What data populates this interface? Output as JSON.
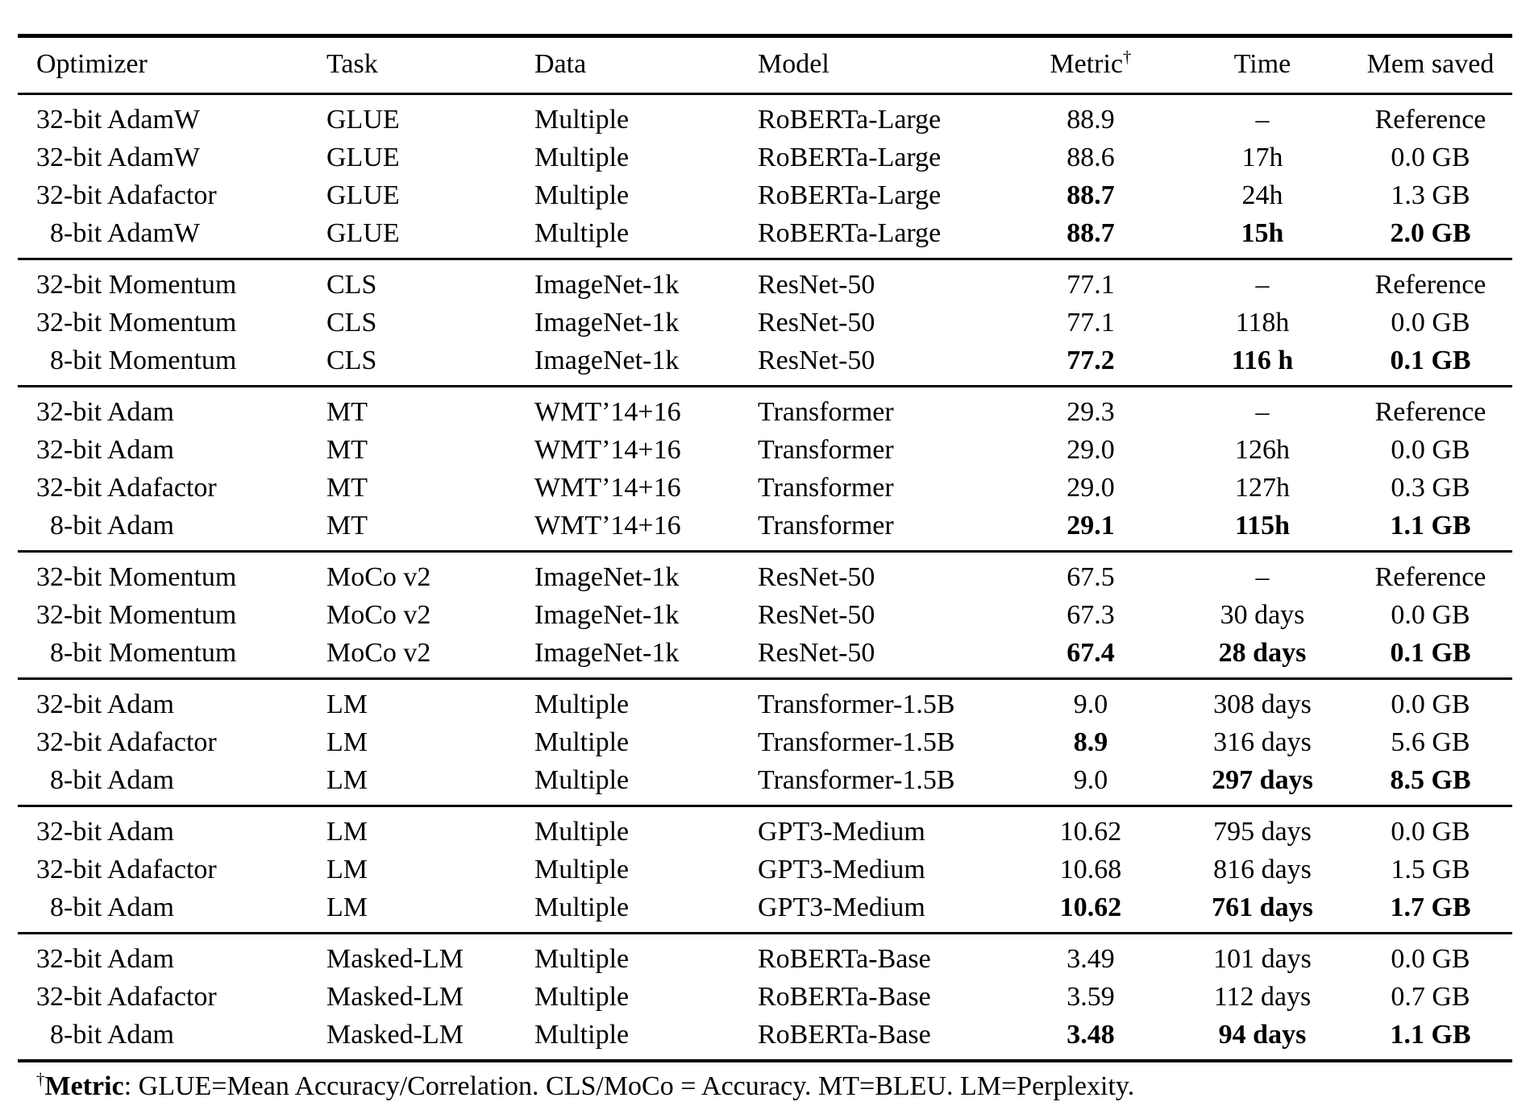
{
  "page": {
    "background_color": "#ffffff",
    "text_color": "#000000"
  },
  "table": {
    "columns": [
      {
        "label": "Optimizer"
      },
      {
        "label": "Task"
      },
      {
        "label": "Data"
      },
      {
        "label": "Model"
      },
      {
        "label": "Metric",
        "sup": "†"
      },
      {
        "label": "Time"
      },
      {
        "label": "Mem saved"
      }
    ],
    "sections": [
      {
        "rows": [
          {
            "cells": [
              "32-bit AdamW",
              "GLUE",
              "Multiple",
              "RoBERTa-Large",
              "88.9",
              "–",
              "Reference"
            ],
            "bold": []
          },
          {
            "cells": [
              "32-bit AdamW",
              "GLUE",
              "Multiple",
              "RoBERTa-Large",
              "88.6",
              "17h",
              "0.0 GB"
            ],
            "bold": []
          },
          {
            "cells": [
              "32-bit Adafactor",
              "GLUE",
              "Multiple",
              "RoBERTa-Large",
              "88.7",
              "24h",
              "1.3 GB"
            ],
            "bold": [
              4
            ]
          },
          {
            "cells": [
              "8-bit AdamW",
              "GLUE",
              "Multiple",
              "RoBERTa-Large",
              "88.7",
              "15h",
              "2.0 GB"
            ],
            "bold": [
              4,
              5,
              6
            ],
            "indent": true
          }
        ]
      },
      {
        "rows": [
          {
            "cells": [
              "32-bit Momentum",
              "CLS",
              "ImageNet-1k",
              "ResNet-50",
              "77.1",
              "–",
              "Reference"
            ],
            "bold": []
          },
          {
            "cells": [
              "32-bit Momentum",
              "CLS",
              "ImageNet-1k",
              "ResNet-50",
              "77.1",
              "118h",
              "0.0 GB"
            ],
            "bold": []
          },
          {
            "cells": [
              "8-bit Momentum",
              "CLS",
              "ImageNet-1k",
              "ResNet-50",
              "77.2",
              "116 h",
              "0.1 GB"
            ],
            "bold": [
              4,
              5,
              6
            ],
            "indent": true
          }
        ]
      },
      {
        "rows": [
          {
            "cells": [
              "32-bit Adam",
              "MT",
              "WMT’14+16",
              "Transformer",
              "29.3",
              "–",
              "Reference"
            ],
            "bold": []
          },
          {
            "cells": [
              "32-bit Adam",
              "MT",
              "WMT’14+16",
              "Transformer",
              "29.0",
              "126h",
              "0.0 GB"
            ],
            "bold": []
          },
          {
            "cells": [
              "32-bit Adafactor",
              "MT",
              "WMT’14+16",
              "Transformer",
              "29.0",
              "127h",
              "0.3 GB"
            ],
            "bold": []
          },
          {
            "cells": [
              "8-bit Adam",
              "MT",
              "WMT’14+16",
              "Transformer",
              "29.1",
              "115h",
              "1.1 GB"
            ],
            "bold": [
              4,
              5,
              6
            ],
            "indent": true
          }
        ]
      },
      {
        "rows": [
          {
            "cells": [
              "32-bit Momentum",
              "MoCo v2",
              "ImageNet-1k",
              "ResNet-50",
              "67.5",
              "–",
              "Reference"
            ],
            "bold": []
          },
          {
            "cells": [
              "32-bit Momentum",
              "MoCo v2",
              "ImageNet-1k",
              "ResNet-50",
              "67.3",
              "30 days",
              "0.0 GB"
            ],
            "bold": []
          },
          {
            "cells": [
              "8-bit Momentum",
              "MoCo v2",
              "ImageNet-1k",
              "ResNet-50",
              "67.4",
              "28 days",
              "0.1 GB"
            ],
            "bold": [
              4,
              5,
              6
            ],
            "indent": true
          }
        ]
      },
      {
        "rows": [
          {
            "cells": [
              "32-bit Adam",
              "LM",
              "Multiple",
              "Transformer-1.5B",
              "9.0",
              "308 days",
              "0.0 GB"
            ],
            "bold": []
          },
          {
            "cells": [
              "32-bit Adafactor",
              "LM",
              "Multiple",
              "Transformer-1.5B",
              "8.9",
              "316 days",
              "5.6 GB"
            ],
            "bold": [
              4
            ]
          },
          {
            "cells": [
              "8-bit Adam",
              "LM",
              "Multiple",
              "Transformer-1.5B",
              "9.0",
              "297 days",
              "8.5 GB"
            ],
            "bold": [
              5,
              6
            ],
            "indent": true
          }
        ]
      },
      {
        "rows": [
          {
            "cells": [
              "32-bit Adam",
              "LM",
              "Multiple",
              "GPT3-Medium",
              "10.62",
              "795 days",
              "0.0 GB"
            ],
            "bold": []
          },
          {
            "cells": [
              "32-bit Adafactor",
              "LM",
              "Multiple",
              "GPT3-Medium",
              "10.68",
              "816 days",
              "1.5 GB"
            ],
            "bold": []
          },
          {
            "cells": [
              "8-bit Adam",
              "LM",
              "Multiple",
              "GPT3-Medium",
              "10.62",
              "761 days",
              "1.7 GB"
            ],
            "bold": [
              4,
              5,
              6
            ],
            "indent": true
          }
        ]
      },
      {
        "rows": [
          {
            "cells": [
              "32-bit Adam",
              "Masked-LM",
              "Multiple",
              "RoBERTa-Base",
              "3.49",
              "101 days",
              "0.0 GB"
            ],
            "bold": []
          },
          {
            "cells": [
              "32-bit Adafactor",
              "Masked-LM",
              "Multiple",
              "RoBERTa-Base",
              "3.59",
              "112 days",
              "0.7 GB"
            ],
            "bold": []
          },
          {
            "cells": [
              "8-bit Adam",
              "Masked-LM",
              "Multiple",
              "RoBERTa-Base",
              "3.48",
              "94 days",
              "1.1 GB"
            ],
            "bold": [
              4,
              5,
              6
            ],
            "indent": true
          }
        ]
      }
    ],
    "footnote": {
      "dagger": "†",
      "term": "Metric",
      "text": ": GLUE=Mean Accuracy/Correlation. CLS/MoCo = Accuracy. MT=BLEU. LM=Perplexity."
    }
  }
}
